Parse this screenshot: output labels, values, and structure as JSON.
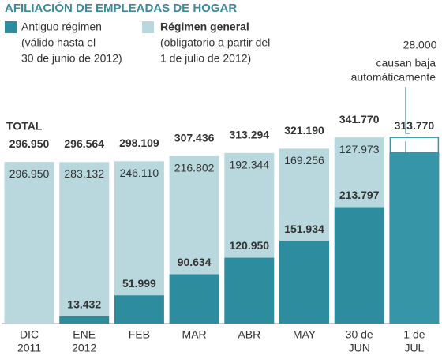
{
  "chart_data": {
    "type": "stacked-bar",
    "title": "AFILIACIÓN DE EMPLEADAS DE HOGAR",
    "categories": [
      [
        "DIC",
        "2011"
      ],
      [
        "ENE",
        "2012"
      ],
      [
        "FEB"
      ],
      [
        "MAR"
      ],
      [
        "ABR"
      ],
      [
        "MAY"
      ],
      [
        "30 de",
        "JUN"
      ],
      [
        "1 de",
        "JUL"
      ]
    ],
    "series": [
      {
        "name": "Antiguo régimen",
        "note": [
          "(válido hasta el",
          "30 de junio de 2012)"
        ],
        "color": "#2d8c9e",
        "values": [
          null,
          13432,
          51999,
          90634,
          120950,
          151934,
          213797,
          313770
        ],
        "value_labels": [
          null,
          "13.432",
          "51.999",
          "90.634",
          "120.950",
          "151.934",
          "213.797",
          null
        ]
      },
      {
        "name": "Régimen general",
        "note": [
          "(obligatorio a partir del",
          "1 de julio de 2012)"
        ],
        "color": "#b8d8de",
        "values": [
          296950,
          283132,
          246110,
          216802,
          192344,
          169256,
          127973,
          null
        ],
        "value_labels": [
          "296.950",
          "283.132",
          "246.110",
          "216.802",
          "192.344",
          "169.256",
          "127.973",
          null
        ]
      }
    ],
    "totals": {
      "name": "TOTAL",
      "values": [
        296950,
        296564,
        298109,
        307436,
        313294,
        321190,
        341770,
        313770
      ],
      "value_labels": [
        "296.950",
        "296.564",
        "298.109",
        "307.436",
        "313.294",
        "321.190",
        "341.770",
        "313.770"
      ]
    },
    "annotation": {
      "value": 28000,
      "value_label": "28.000",
      "text": [
        "causan baja",
        "automáticamente"
      ],
      "category_index": 7
    }
  }
}
